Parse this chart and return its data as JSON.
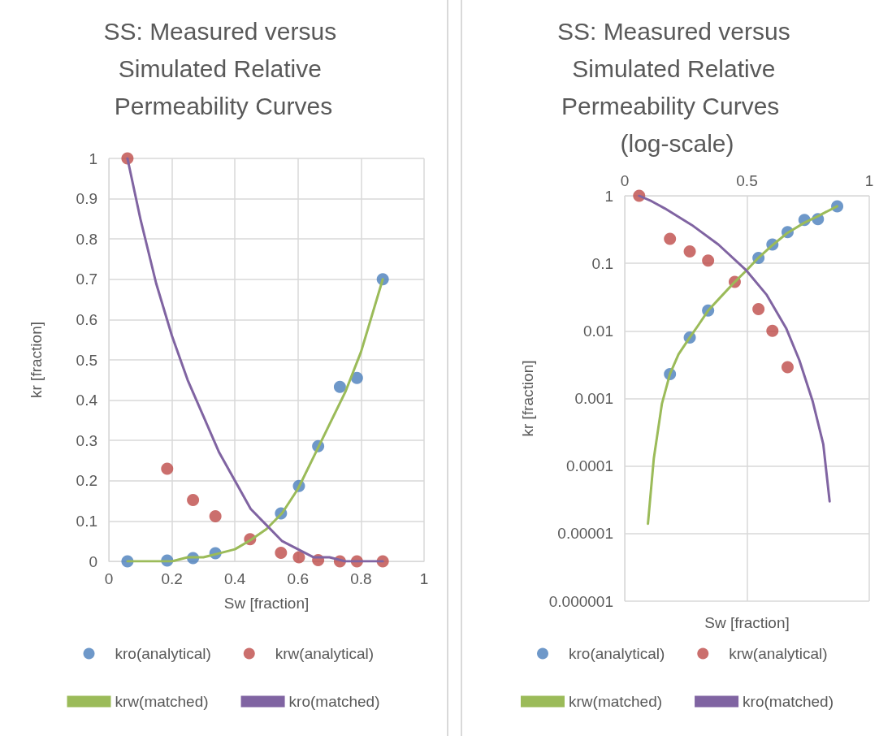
{
  "chart_data": [
    {
      "type": "scatter",
      "title": "SS: Measured versus Simulated Relative Permeability Curves",
      "xlabel": "Sw [fraction]",
      "ylabel": "kr [fraction]",
      "xlim": [
        0,
        1
      ],
      "xticks": [
        0,
        0.2,
        0.4,
        0.6,
        0.8,
        1
      ],
      "ylim": [
        0,
        1
      ],
      "yticks": [
        0,
        0.1,
        0.2,
        0.3,
        0.4,
        0.5,
        0.6,
        0.7,
        0.8,
        0.9,
        1
      ],
      "grid": true,
      "legend": "bottom",
      "series": [
        {
          "name": "kro(analytical)",
          "marker": "circle",
          "color": "#4a7ebb",
          "x": [
            0.059,
            0.185,
            0.267,
            0.338,
            0.546,
            0.603,
            0.664,
            0.733,
            0.787,
            0.869
          ],
          "values": [
            0,
            0.002,
            0.008,
            0.02,
            0.119,
            0.187,
            0.286,
            0.433,
            0.455,
            0.7
          ]
        },
        {
          "name": "krw(analytical)",
          "marker": "circle",
          "color": "#be4b48",
          "x": [
            0.059,
            0.185,
            0.267,
            0.338,
            0.448,
            0.546,
            0.603,
            0.664,
            0.733,
            0.787,
            0.869
          ],
          "values": [
            1,
            0.23,
            0.152,
            0.112,
            0.055,
            0.021,
            0.01,
            0.003,
            0,
            0,
            0
          ]
        },
        {
          "name": "krw(matched)",
          "type": "line",
          "marker": "none",
          "color": "#9bbb59",
          "x": [
            0.059,
            0.1,
            0.15,
            0.2,
            0.25,
            0.3,
            0.35,
            0.4,
            0.45,
            0.5,
            0.55,
            0.6,
            0.65,
            0.7,
            0.75,
            0.8,
            0.869
          ],
          "values": [
            0,
            0,
            0,
            0,
            0.01,
            0.01,
            0.02,
            0.03,
            0.053,
            0.08,
            0.12,
            0.18,
            0.26,
            0.34,
            0.42,
            0.52,
            0.7
          ]
        },
        {
          "name": "kro(matched)",
          "type": "line",
          "marker": "none",
          "color": "#8064a2",
          "x": [
            0.059,
            0.1,
            0.15,
            0.2,
            0.25,
            0.3,
            0.35,
            0.4,
            0.45,
            0.5,
            0.55,
            0.6,
            0.65,
            0.7,
            0.75,
            0.8,
            0.869
          ],
          "values": [
            1,
            0.85,
            0.69,
            0.56,
            0.45,
            0.36,
            0.27,
            0.2,
            0.13,
            0.09,
            0.05,
            0.03,
            0.01,
            0.01,
            0,
            0,
            0
          ]
        }
      ]
    },
    {
      "type": "scatter",
      "title": "SS: Measured versus Simulated Relative Permeability Curves  (log-scale)",
      "xlabel": "Sw [fraction]",
      "ylabel": "kr [fraction]",
      "xlim": [
        0,
        1
      ],
      "xticks": [
        0,
        0.5,
        1
      ],
      "ylim": [
        1e-06,
        1
      ],
      "yticks": [
        {
          "value": 1e-06,
          "label": "0.000001"
        },
        {
          "value": 1e-05,
          "label": "0.00001"
        },
        0.0001,
        0.001,
        0.01,
        0.1,
        1
      ],
      "log": "y",
      "grid": true,
      "legend": "bottom",
      "series": [
        {
          "name": "kro(analytical)",
          "marker": "circle",
          "color": "#4a7ebb",
          "x": [
            0.185,
            0.266,
            0.341,
            0.547,
            0.604,
            0.666,
            0.735,
            0.79,
            0.869
          ],
          "values": [
            0.0023,
            0.008,
            0.02,
            0.12,
            0.19,
            0.29,
            0.44,
            0.45,
            0.7
          ]
        },
        {
          "name": "krw(analytical)",
          "marker": "circle",
          "color": "#be4b48",
          "x": [
            0.059,
            0.185,
            0.266,
            0.341,
            0.45,
            0.547,
            0.604,
            0.666
          ],
          "values": [
            1,
            0.23,
            0.15,
            0.11,
            0.053,
            0.021,
            0.01,
            0.0029
          ]
        },
        {
          "name": "krw(matched)",
          "type": "line",
          "marker": "none",
          "color": "#9bbb59",
          "x": [
            0.095,
            0.119,
            0.152,
            0.185,
            0.22,
            0.266,
            0.3,
            0.341,
            0.4,
            0.45,
            0.5,
            0.546,
            0.6,
            0.664,
            0.735,
            0.79,
            0.869
          ],
          "values": [
            1.4e-05,
            0.00013,
            0.00083,
            0.0023,
            0.0045,
            0.008,
            0.012,
            0.02,
            0.034,
            0.053,
            0.08,
            0.12,
            0.18,
            0.28,
            0.4,
            0.5,
            0.7
          ]
        },
        {
          "name": "kro(matched)",
          "type": "line",
          "marker": "none",
          "color": "#8064a2",
          "x": [
            0.059,
            0.11,
            0.164,
            0.274,
            0.383,
            0.494,
            0.581,
            0.66,
            0.714,
            0.769,
            0.812,
            0.838
          ],
          "values": [
            1,
            0.83,
            0.65,
            0.37,
            0.19,
            0.081,
            0.034,
            0.011,
            0.0037,
            0.0009,
            0.00021,
            3e-05
          ]
        }
      ]
    }
  ]
}
